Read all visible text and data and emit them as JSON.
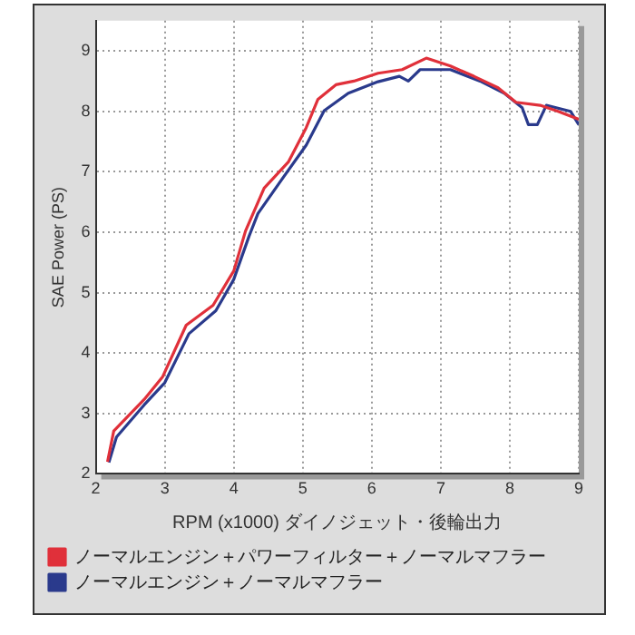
{
  "chart_data": {
    "type": "line",
    "xlabel": "RPM (x1000) ダイノジェット・後輪出力",
    "ylabel": "SAE Power (PS)",
    "xlim": [
      2,
      9
    ],
    "ylim": [
      2,
      9.5
    ],
    "xticks": [
      2,
      3,
      4,
      5,
      6,
      7,
      8,
      9
    ],
    "yticks": [
      2,
      3,
      4,
      5,
      6,
      7,
      8,
      9
    ],
    "grid": true,
    "legend": "bottom",
    "marker": "none",
    "line_style": "solid",
    "series": [
      {
        "name": "ノーマルエンジン＋パワーフィルター＋ノーマルマフラー",
        "color": "#e0303a",
        "x": [
          2.17,
          2.26,
          2.7,
          2.97,
          3.31,
          3.7,
          4.0,
          4.17,
          4.44,
          4.79,
          5.05,
          5.22,
          5.48,
          5.74,
          6.09,
          6.44,
          6.79,
          7.14,
          7.48,
          7.83,
          8.09,
          8.44,
          8.7,
          9.0
        ],
        "values": [
          2.2,
          2.71,
          3.23,
          3.61,
          4.46,
          4.79,
          5.36,
          6.02,
          6.73,
          7.16,
          7.73,
          8.2,
          8.44,
          8.5,
          8.63,
          8.69,
          8.88,
          8.75,
          8.58,
          8.39,
          8.15,
          8.1,
          8.0,
          7.87
        ]
      },
      {
        "name": "ノーマルエンジン＋ノーマルマフラー",
        "color": "#2a3a8c",
        "x": [
          2.19,
          2.3,
          2.7,
          3.0,
          3.35,
          3.74,
          4.0,
          4.22,
          4.35,
          4.7,
          5.05,
          5.31,
          5.66,
          6.09,
          6.4,
          6.53,
          6.7,
          7.14,
          7.57,
          7.92,
          8.18,
          8.27,
          8.4,
          8.53,
          8.88,
          9.0
        ],
        "values": [
          2.19,
          2.61,
          3.14,
          3.51,
          4.32,
          4.7,
          5.22,
          5.93,
          6.31,
          6.88,
          7.44,
          8.01,
          8.3,
          8.49,
          8.58,
          8.5,
          8.69,
          8.69,
          8.5,
          8.3,
          8.06,
          7.78,
          7.78,
          8.1,
          8.0,
          7.78
        ]
      }
    ]
  }
}
